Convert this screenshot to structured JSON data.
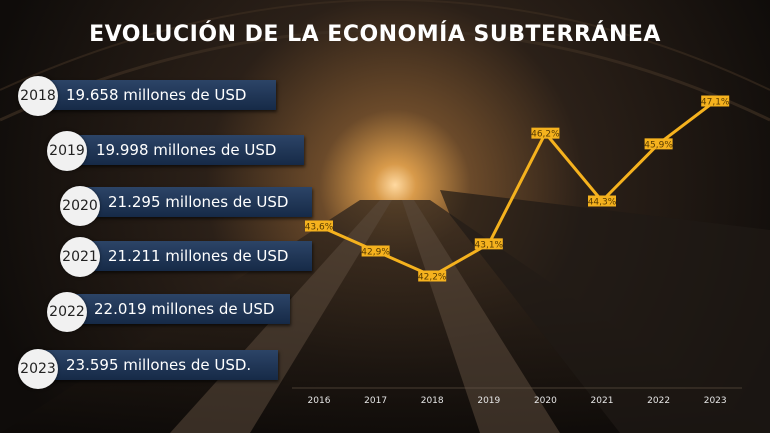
{
  "title": "EVOLUCIÓN DE LA ECONOMÍA SUBTERRÁNEA",
  "amounts": [
    {
      "year": "2018",
      "text": "19.658 millones de USD"
    },
    {
      "year": "2019",
      "text": "19.998 millones de USD"
    },
    {
      "year": "2020",
      "text": "21.295 millones de USD"
    },
    {
      "year": "2021",
      "text": "21.211 millones de USD"
    },
    {
      "year": "2022",
      "text": "22.019 millones de USD"
    },
    {
      "year": "2023",
      "text": "23.595 millones de USD."
    }
  ],
  "chart_data": {
    "type": "line",
    "x": [
      "2016",
      "2017",
      "2018",
      "2019",
      "2020",
      "2021",
      "2022",
      "2023"
    ],
    "values": [
      43.6,
      42.9,
      42.2,
      43.1,
      46.2,
      44.3,
      45.9,
      47.1
    ],
    "labels": [
      "43,6%",
      "42,9%",
      "42,2%",
      "43,1%",
      "46,2%",
      "44,3%",
      "45,9%",
      "47,1%"
    ],
    "line_color": "#f5b21e",
    "label_bg": "#f5b21e",
    "label_color": "#5a3c00",
    "grid": false,
    "legend": "none"
  }
}
